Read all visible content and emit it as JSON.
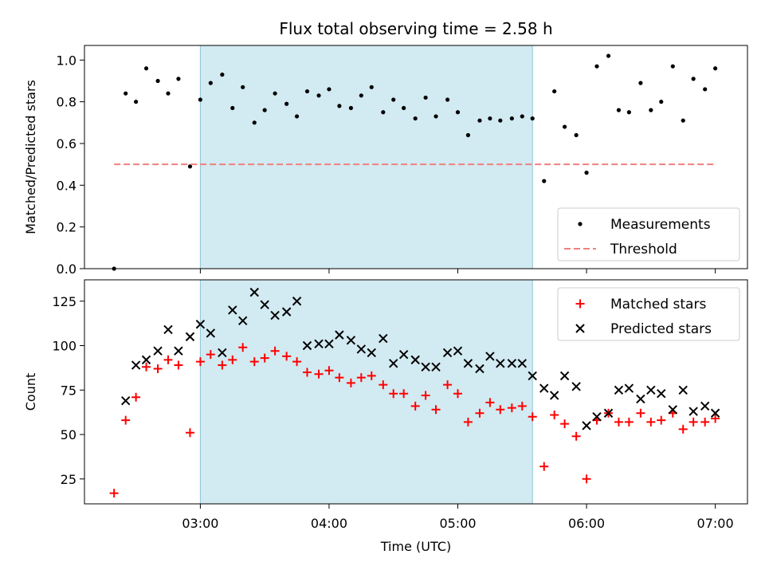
{
  "chart_data": {
    "type": "scatter",
    "title": "Flux total observing time = 2.58 h",
    "xlabel": "Time (UTC)",
    "x_unit": "hours UTC",
    "xlim": [
      2.1,
      7.25
    ],
    "xticks": [
      {
        "value": 3,
        "label": "03:00"
      },
      {
        "value": 4,
        "label": "04:00"
      },
      {
        "value": 5,
        "label": "05:00"
      },
      {
        "value": 6,
        "label": "06:00"
      },
      {
        "value": 7,
        "label": "07:00"
      }
    ],
    "shaded_region": {
      "x": [
        3.0,
        5.58
      ],
      "color": "#add8e6"
    },
    "panels": [
      {
        "ylabel": "Matched/Predicted stars",
        "ylim": [
          0,
          1.07
        ],
        "yticks": [
          "0.0",
          "0.2",
          "0.4",
          "0.6",
          "0.8",
          "1.0"
        ],
        "ytick_values": [
          0,
          0.2,
          0.4,
          0.6,
          0.8,
          1.0
        ],
        "legend": {
          "position": "lower right"
        },
        "series": [
          {
            "name": "Measurements",
            "marker": "dot",
            "color": "#000000",
            "x": [
              2.33,
              2.42,
              2.5,
              2.58,
              2.67,
              2.75,
              2.83,
              2.92,
              3.0,
              3.08,
              3.17,
              3.25,
              3.33,
              3.42,
              3.5,
              3.58,
              3.67,
              3.75,
              3.83,
              3.92,
              4.0,
              4.08,
              4.17,
              4.25,
              4.33,
              4.42,
              4.5,
              4.58,
              4.67,
              4.75,
              4.83,
              4.92,
              5.0,
              5.08,
              5.17,
              5.25,
              5.33,
              5.42,
              5.5,
              5.58,
              5.67,
              5.75,
              5.83,
              5.92,
              6.0,
              6.08,
              6.17,
              6.25,
              6.33,
              6.42,
              6.5,
              6.58,
              6.67,
              6.75,
              6.83,
              6.92,
              7.0
            ],
            "y": [
              0.0,
              0.84,
              0.8,
              0.96,
              0.9,
              0.84,
              0.91,
              0.49,
              0.81,
              0.89,
              0.93,
              0.77,
              0.87,
              0.7,
              0.76,
              0.84,
              0.79,
              0.73,
              0.85,
              0.83,
              0.86,
              0.78,
              0.77,
              0.83,
              0.87,
              0.75,
              0.81,
              0.77,
              0.72,
              0.82,
              0.73,
              0.81,
              0.75,
              0.64,
              0.71,
              0.72,
              0.71,
              0.72,
              0.73,
              0.72,
              0.42,
              0.85,
              0.68,
              0.64,
              0.46,
              0.97,
              1.02,
              0.76,
              0.75,
              0.89,
              0.76,
              0.8,
              0.97,
              0.71,
              0.91,
              0.86,
              0.96
            ]
          },
          {
            "name": "Threshold",
            "marker": "dashed-line",
            "color": "#f08080",
            "x": [
              2.33,
              7.0
            ],
            "y": [
              0.5,
              0.5
            ]
          }
        ]
      },
      {
        "ylabel": "Count",
        "ylim": [
          11,
          137
        ],
        "yticks": [
          "25",
          "50",
          "75",
          "100",
          "125"
        ],
        "ytick_values": [
          25,
          50,
          75,
          100,
          125
        ],
        "legend": {
          "position": "upper right"
        },
        "series": [
          {
            "name": "Matched stars",
            "marker": "plus",
            "color": "#ff0000",
            "x": [
              2.33,
              2.42,
              2.5,
              2.58,
              2.67,
              2.75,
              2.83,
              2.92,
              3.0,
              3.08,
              3.17,
              3.25,
              3.33,
              3.42,
              3.5,
              3.58,
              3.67,
              3.75,
              3.83,
              3.92,
              4.0,
              4.08,
              4.17,
              4.25,
              4.33,
              4.42,
              4.5,
              4.58,
              4.67,
              4.75,
              4.83,
              4.92,
              5.0,
              5.08,
              5.17,
              5.25,
              5.33,
              5.42,
              5.5,
              5.58,
              5.67,
              5.75,
              5.83,
              5.92,
              6.0,
              6.08,
              6.17,
              6.25,
              6.33,
              6.42,
              6.5,
              6.58,
              6.67,
              6.75,
              6.83,
              6.92,
              7.0
            ],
            "y": [
              17,
              58,
              71,
              88,
              87,
              92,
              89,
              51,
              91,
              95,
              89,
              92,
              99,
              91,
              93,
              97,
              94,
              91,
              85,
              84,
              86,
              82,
              79,
              82,
              83,
              78,
              73,
              73,
              66,
              72,
              64,
              78,
              73,
              57,
              62,
              68,
              64,
              65,
              66,
              60,
              32,
              61,
              56,
              49,
              25,
              58,
              62,
              57,
              57,
              62,
              57,
              58,
              62,
              53,
              57,
              57,
              59
            ]
          },
          {
            "name": "Predicted stars",
            "marker": "x",
            "color": "#000000",
            "x": [
              2.42,
              2.5,
              2.58,
              2.67,
              2.75,
              2.83,
              2.92,
              3.0,
              3.08,
              3.17,
              3.25,
              3.33,
              3.42,
              3.5,
              3.58,
              3.67,
              3.75,
              3.83,
              3.92,
              4.0,
              4.08,
              4.17,
              4.25,
              4.33,
              4.42,
              4.5,
              4.58,
              4.67,
              4.75,
              4.83,
              4.92,
              5.0,
              5.08,
              5.17,
              5.25,
              5.33,
              5.42,
              5.5,
              5.58,
              5.67,
              5.75,
              5.83,
              5.92,
              6.0,
              6.08,
              6.17,
              6.25,
              6.33,
              6.42,
              6.5,
              6.58,
              6.67,
              6.75,
              6.83,
              6.92,
              7.0
            ],
            "y": [
              69,
              89,
              92,
              97,
              109,
              97,
              105,
              112,
              107,
              96,
              120,
              114,
              130,
              123,
              117,
              119,
              125,
              100,
              101,
              101,
              106,
              103,
              98,
              96,
              104,
              90,
              95,
              92,
              88,
              88,
              96,
              97,
              90,
              87,
              94,
              90,
              90,
              90,
              83,
              76,
              72,
              83,
              77,
              55,
              60,
              62,
              75,
              76,
              70,
              75,
              73,
              64,
              75,
              63,
              66,
              62
            ]
          }
        ]
      }
    ]
  }
}
